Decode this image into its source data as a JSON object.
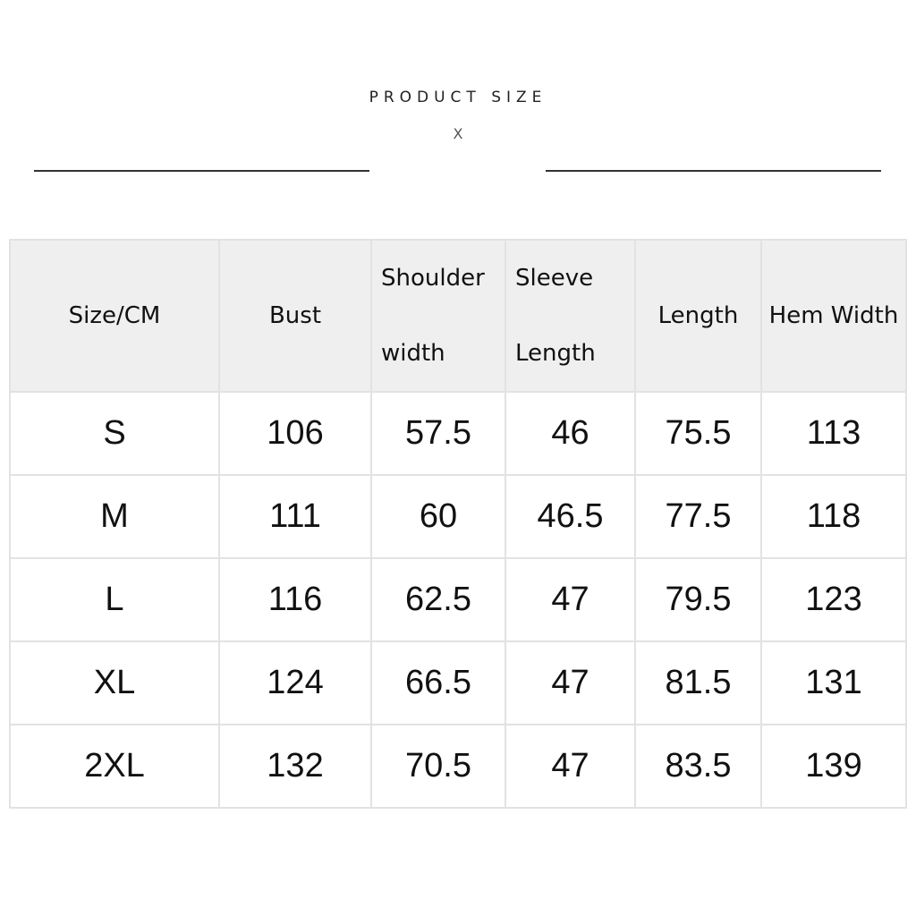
{
  "header": {
    "title": "PRODUCT SIZE",
    "subtitle": "X"
  },
  "table": {
    "columns": [
      {
        "line1": "Size/CM",
        "line2": ""
      },
      {
        "line1": "Bust",
        "line2": ""
      },
      {
        "line1": "Shoulder",
        "line2": "width"
      },
      {
        "line1": "Sleeve",
        "line2": "Length"
      },
      {
        "line1": "Length",
        "line2": ""
      },
      {
        "line1": "Hem Width",
        "line2": ""
      }
    ],
    "rows": [
      [
        "S",
        "106",
        "57.5",
        "46",
        "75.5",
        "113"
      ],
      [
        "M",
        "111",
        "60",
        "46.5",
        "77.5",
        "118"
      ],
      [
        "L",
        "116",
        "62.5",
        "47",
        "79.5",
        "123"
      ],
      [
        "XL",
        "124",
        "66.5",
        "47",
        "81.5",
        "131"
      ],
      [
        "2XL",
        "132",
        "70.5",
        "47",
        "83.5",
        "139"
      ]
    ]
  }
}
